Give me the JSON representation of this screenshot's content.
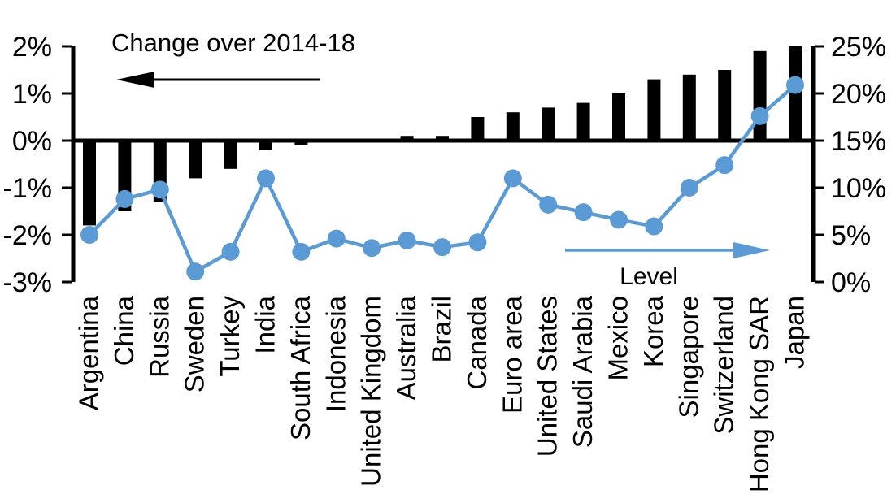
{
  "chart_data": {
    "type": "combo-bar-line",
    "title": "",
    "categories": [
      "Argentina",
      "China",
      "Russia",
      "Sweden",
      "Turkey",
      "India",
      "South Africa",
      "Indonesia",
      "United Kingdom",
      "Australia",
      "Brazil",
      "Canada",
      "Euro area",
      "United States",
      "Saudi Arabia",
      "Mexico",
      "Korea",
      "Singapore",
      "Switzerland",
      "Hong Kong SAR",
      "Japan"
    ],
    "series": [
      {
        "name": "Change over 2014-18",
        "type": "bar",
        "axis": "left",
        "color": "#000000",
        "values": [
          -1.8,
          -1.5,
          -1.3,
          -0.8,
          -0.6,
          -0.2,
          -0.1,
          0,
          0,
          0.1,
          0.1,
          0.5,
          0.6,
          0.7,
          0.8,
          1.0,
          1.3,
          1.4,
          1.5,
          1.9,
          2.0
        ]
      },
      {
        "name": "Level",
        "type": "line",
        "axis": "right",
        "color": "#5B9BD5",
        "values": [
          5.0,
          8.8,
          9.8,
          1.1,
          3.2,
          11.0,
          3.2,
          4.6,
          3.6,
          4.4,
          3.7,
          4.2,
          11.0,
          8.2,
          7.4,
          6.6,
          5.9,
          10.0,
          12.4,
          17.6,
          20.9
        ]
      }
    ],
    "left_axis": {
      "min": -3,
      "max": 2,
      "tick_step": 1,
      "ticks": [
        "2%",
        "1%",
        "0%",
        "-1%",
        "-2%",
        "-3%"
      ]
    },
    "right_axis": {
      "min": 0,
      "max": 25,
      "tick_step": 5,
      "ticks": [
        "25%",
        "20%",
        "15%",
        "10%",
        "5%",
        "0%"
      ]
    },
    "annotations": {
      "left_label": "Change over 2014-18",
      "left_arrow_direction": "left",
      "right_label": "Level",
      "right_arrow_direction": "right"
    },
    "layout_hints": {
      "grid": false,
      "legend": "annotated-arrows",
      "background": "#ffffff"
    }
  }
}
